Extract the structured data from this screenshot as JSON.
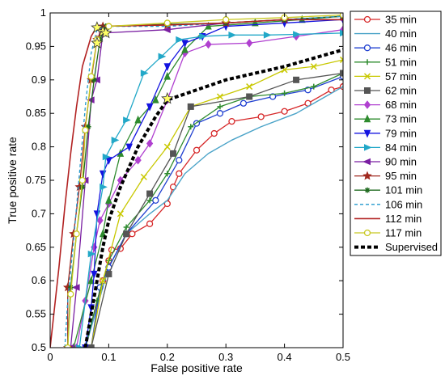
{
  "chart_data": {
    "type": "line",
    "title": "",
    "xlabel": "False positive rate",
    "ylabel": "True positive rate",
    "xlim": [
      0,
      0.5
    ],
    "ylim": [
      0.5,
      1
    ],
    "xticks": [
      "0",
      "0.1",
      "0.2",
      "0.3",
      "0.4",
      "0.5"
    ],
    "yticks": [
      "0.5",
      "0.55",
      "0.6",
      "0.65",
      "0.7",
      "0.75",
      "0.8",
      "0.85",
      "0.9",
      "0.95",
      "1"
    ],
    "grid": false,
    "legend_position": "right",
    "series": [
      {
        "name": "35 min",
        "color": "#d62728",
        "marker": "circle",
        "dashed": false,
        "width": 1.3,
        "points": [
          [
            0.06,
            0.5
          ],
          [
            0.09,
            0.6
          ],
          [
            0.1,
            0.63
          ],
          [
            0.105,
            0.646
          ],
          [
            0.12,
            0.648
          ],
          [
            0.14,
            0.67
          ],
          [
            0.17,
            0.685
          ],
          [
            0.2,
            0.715
          ],
          [
            0.21,
            0.74
          ],
          [
            0.22,
            0.76
          ],
          [
            0.25,
            0.795
          ],
          [
            0.28,
            0.82
          ],
          [
            0.31,
            0.838
          ],
          [
            0.36,
            0.845
          ],
          [
            0.4,
            0.853
          ],
          [
            0.44,
            0.865
          ],
          [
            0.48,
            0.885
          ],
          [
            0.5,
            0.89
          ]
        ]
      },
      {
        "name": "40 min",
        "color": "#4aa3c8",
        "marker": "none",
        "dashed": false,
        "width": 1.4,
        "points": [
          [
            0.06,
            0.5
          ],
          [
            0.09,
            0.59
          ],
          [
            0.1,
            0.62
          ],
          [
            0.13,
            0.67
          ],
          [
            0.17,
            0.7
          ],
          [
            0.2,
            0.72
          ],
          [
            0.23,
            0.76
          ],
          [
            0.27,
            0.79
          ],
          [
            0.31,
            0.81
          ],
          [
            0.36,
            0.83
          ],
          [
            0.42,
            0.85
          ],
          [
            0.46,
            0.87
          ],
          [
            0.5,
            0.89
          ]
        ]
      },
      {
        "name": "46 min",
        "color": "#1f3fd0",
        "marker": "circle",
        "dashed": false,
        "width": 1.3,
        "points": [
          [
            0.07,
            0.5
          ],
          [
            0.085,
            0.59
          ],
          [
            0.1,
            0.62
          ],
          [
            0.13,
            0.67
          ],
          [
            0.18,
            0.72
          ],
          [
            0.22,
            0.78
          ],
          [
            0.25,
            0.835
          ],
          [
            0.29,
            0.85
          ],
          [
            0.33,
            0.865
          ],
          [
            0.38,
            0.875
          ],
          [
            0.44,
            0.885
          ],
          [
            0.5,
            0.905
          ]
        ]
      },
      {
        "name": "51 min",
        "color": "#2e8b2e",
        "marker": "plus",
        "dashed": false,
        "width": 1.3,
        "points": [
          [
            0.06,
            0.5
          ],
          [
            0.08,
            0.57
          ],
          [
            0.1,
            0.63
          ],
          [
            0.13,
            0.68
          ],
          [
            0.17,
            0.72
          ],
          [
            0.2,
            0.76
          ],
          [
            0.24,
            0.83
          ],
          [
            0.29,
            0.86
          ],
          [
            0.34,
            0.875
          ],
          [
            0.4,
            0.88
          ],
          [
            0.45,
            0.89
          ],
          [
            0.5,
            0.91
          ]
        ]
      },
      {
        "name": "57 min",
        "color": "#c8c800",
        "marker": "x",
        "dashed": false,
        "width": 1.3,
        "points": [
          [
            0.07,
            0.5
          ],
          [
            0.09,
            0.6
          ],
          [
            0.12,
            0.7
          ],
          [
            0.16,
            0.755
          ],
          [
            0.2,
            0.8
          ],
          [
            0.24,
            0.86
          ],
          [
            0.29,
            0.875
          ],
          [
            0.34,
            0.89
          ],
          [
            0.4,
            0.915
          ],
          [
            0.45,
            0.92
          ],
          [
            0.5,
            0.93
          ]
        ]
      },
      {
        "name": "62 min",
        "color": "#555555",
        "marker": "square",
        "dashed": false,
        "width": 1.3,
        "points": [
          [
            0.07,
            0.5
          ],
          [
            0.1,
            0.61
          ],
          [
            0.13,
            0.67
          ],
          [
            0.17,
            0.73
          ],
          [
            0.21,
            0.79
          ],
          [
            0.24,
            0.86
          ],
          [
            0.34,
            0.875
          ],
          [
            0.42,
            0.9
          ],
          [
            0.5,
            0.91
          ]
        ]
      },
      {
        "name": "68 min",
        "color": "#b040d0",
        "marker": "diamond",
        "dashed": false,
        "width": 1.3,
        "points": [
          [
            0.045,
            0.5
          ],
          [
            0.06,
            0.57
          ],
          [
            0.075,
            0.65
          ],
          [
            0.085,
            0.69
          ],
          [
            0.1,
            0.715
          ],
          [
            0.12,
            0.75
          ],
          [
            0.15,
            0.78
          ],
          [
            0.17,
            0.805
          ],
          [
            0.2,
            0.87
          ],
          [
            0.23,
            0.94
          ],
          [
            0.27,
            0.953
          ],
          [
            0.34,
            0.955
          ],
          [
            0.42,
            0.965
          ],
          [
            0.5,
            0.975
          ]
        ]
      },
      {
        "name": "73 min",
        "color": "#2e8b2e",
        "marker": "triangle-up",
        "dashed": false,
        "width": 1.3,
        "points": [
          [
            0.04,
            0.5
          ],
          [
            0.07,
            0.6
          ],
          [
            0.09,
            0.67
          ],
          [
            0.1,
            0.72
          ],
          [
            0.12,
            0.79
          ],
          [
            0.15,
            0.84
          ],
          [
            0.18,
            0.87
          ],
          [
            0.2,
            0.905
          ],
          [
            0.23,
            0.945
          ],
          [
            0.27,
            0.98
          ],
          [
            0.35,
            0.985
          ],
          [
            0.43,
            0.99
          ],
          [
            0.5,
            0.995
          ]
        ]
      },
      {
        "name": "79 min",
        "color": "#1414e0",
        "marker": "triangle-down",
        "dashed": false,
        "width": 1.3,
        "points": [
          [
            0.06,
            0.5
          ],
          [
            0.07,
            0.56
          ],
          [
            0.075,
            0.61
          ],
          [
            0.08,
            0.7
          ],
          [
            0.09,
            0.76
          ],
          [
            0.1,
            0.78
          ],
          [
            0.135,
            0.8
          ],
          [
            0.17,
            0.86
          ],
          [
            0.2,
            0.92
          ],
          [
            0.23,
            0.955
          ],
          [
            0.26,
            0.965
          ],
          [
            0.3,
            0.98
          ],
          [
            0.4,
            0.985
          ],
          [
            0.5,
            0.99
          ]
        ]
      },
      {
        "name": "84 min",
        "color": "#22a8c8",
        "marker": "triangle-right",
        "dashed": false,
        "width": 1.3,
        "points": [
          [
            0.05,
            0.5
          ],
          [
            0.07,
            0.64
          ],
          [
            0.09,
            0.74
          ],
          [
            0.095,
            0.785
          ],
          [
            0.11,
            0.81
          ],
          [
            0.13,
            0.84
          ],
          [
            0.16,
            0.91
          ],
          [
            0.19,
            0.935
          ],
          [
            0.22,
            0.96
          ],
          [
            0.26,
            0.965
          ],
          [
            0.31,
            0.967
          ],
          [
            0.37,
            0.967
          ],
          [
            0.42,
            0.968
          ],
          [
            0.5,
            0.97
          ]
        ]
      },
      {
        "name": "90 min",
        "color": "#7a1fa2",
        "marker": "triangle-left",
        "dashed": false,
        "width": 1.3,
        "points": [
          [
            0.035,
            0.5
          ],
          [
            0.045,
            0.59
          ],
          [
            0.06,
            0.75
          ],
          [
            0.07,
            0.87
          ],
          [
            0.08,
            0.9
          ],
          [
            0.09,
            0.97
          ],
          [
            0.2,
            0.975
          ],
          [
            0.3,
            0.985
          ],
          [
            0.4,
            0.99
          ],
          [
            0.5,
            0.99
          ]
        ]
      },
      {
        "name": "95 min",
        "color": "#a0281e",
        "marker": "star",
        "dashed": false,
        "width": 1.3,
        "points": [
          [
            0.03,
            0.5
          ],
          [
            0.03,
            0.59
          ],
          [
            0.04,
            0.67
          ],
          [
            0.05,
            0.74
          ],
          [
            0.06,
            0.83
          ],
          [
            0.07,
            0.9
          ],
          [
            0.08,
            0.96
          ],
          [
            0.09,
            0.98
          ],
          [
            0.2,
            0.982
          ],
          [
            0.3,
            0.985
          ],
          [
            0.4,
            0.99
          ],
          [
            0.5,
            0.995
          ]
        ]
      },
      {
        "name": "101 min",
        "color": "#1f6a1f",
        "marker": "asterisk",
        "dashed": false,
        "width": 1.3,
        "points": [
          [
            0.03,
            0.5
          ],
          [
            0.035,
            0.59
          ],
          [
            0.045,
            0.67
          ],
          [
            0.055,
            0.74
          ],
          [
            0.065,
            0.83
          ],
          [
            0.075,
            0.9
          ],
          [
            0.085,
            0.96
          ],
          [
            0.095,
            0.98
          ],
          [
            0.2,
            0.983
          ],
          [
            0.3,
            0.985
          ],
          [
            0.4,
            0.99
          ],
          [
            0.5,
            0.995
          ]
        ]
      },
      {
        "name": "106 min",
        "color": "#2299cc",
        "marker": "none",
        "dashed": true,
        "width": 1.3,
        "points": [
          [
            0.025,
            0.5
          ],
          [
            0.03,
            0.57
          ],
          [
            0.04,
            0.66
          ],
          [
            0.05,
            0.76
          ],
          [
            0.06,
            0.86
          ],
          [
            0.07,
            0.94
          ],
          [
            0.08,
            0.975
          ],
          [
            0.1,
            0.98
          ],
          [
            0.2,
            0.98
          ],
          [
            0.3,
            0.985
          ],
          [
            0.4,
            0.99
          ],
          [
            0.5,
            0.995
          ]
        ]
      },
      {
        "name": "112 min",
        "color": "#b22222",
        "marker": "none",
        "dashed": false,
        "width": 1.6,
        "points": [
          [
            0.0,
            0.5
          ],
          [
            0.005,
            0.54
          ],
          [
            0.015,
            0.62
          ],
          [
            0.025,
            0.71
          ],
          [
            0.035,
            0.79
          ],
          [
            0.045,
            0.86
          ],
          [
            0.055,
            0.92
          ],
          [
            0.07,
            0.965
          ],
          [
            0.08,
            0.98
          ],
          [
            0.2,
            0.982
          ],
          [
            0.3,
            0.985
          ],
          [
            0.4,
            0.99
          ],
          [
            0.5,
            0.99
          ]
        ]
      },
      {
        "name": "117 min",
        "color": "#c8c820",
        "marker": "circle",
        "dashed": false,
        "width": 1.3,
        "points": [
          [
            0.03,
            0.5
          ],
          [
            0.035,
            0.58
          ],
          [
            0.045,
            0.67
          ],
          [
            0.055,
            0.75
          ],
          [
            0.06,
            0.825
          ],
          [
            0.07,
            0.905
          ],
          [
            0.08,
            0.96
          ],
          [
            0.1,
            0.98
          ],
          [
            0.2,
            0.985
          ],
          [
            0.3,
            0.99
          ],
          [
            0.4,
            0.993
          ],
          [
            0.5,
            0.997
          ]
        ]
      },
      {
        "name": "Supervised",
        "color": "#000000",
        "marker": "none",
        "dashed": true,
        "width": 4,
        "points": [
          [
            0.06,
            0.5
          ],
          [
            0.07,
            0.55
          ],
          [
            0.08,
            0.6
          ],
          [
            0.09,
            0.65
          ],
          [
            0.1,
            0.69
          ],
          [
            0.12,
            0.74
          ],
          [
            0.15,
            0.8
          ],
          [
            0.18,
            0.845
          ],
          [
            0.2,
            0.87
          ],
          [
            0.3,
            0.9
          ],
          [
            0.4,
            0.92
          ],
          [
            0.5,
            0.945
          ]
        ]
      }
    ],
    "highlight_points": [
      [
        0.08,
        0.978
      ],
      [
        0.09,
        0.972
      ],
      [
        0.095,
        0.97
      ],
      [
        0.08,
        0.955
      ],
      [
        0.2,
        0.872
      ]
    ]
  }
}
